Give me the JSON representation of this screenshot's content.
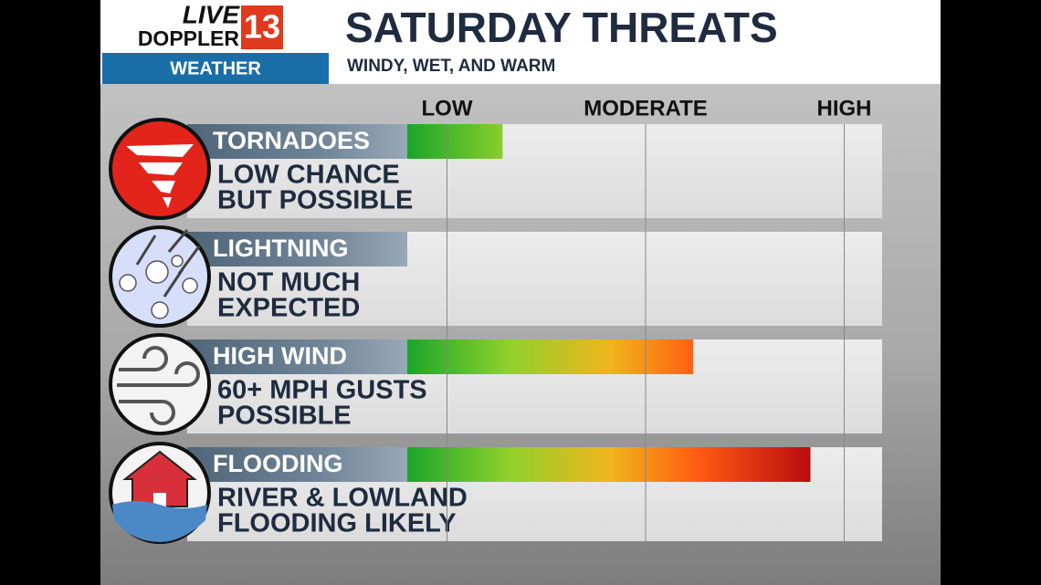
{
  "logo": {
    "line1": "LIVE",
    "line2": "DOPPLER",
    "channel": "13",
    "section": "WEATHER"
  },
  "header": {
    "title": "SATURDAY THREATS",
    "subtitle": "WINDY, WET, AND WARM"
  },
  "scale": {
    "xlim": [
      0.8,
      3.2
    ],
    "ticks": [
      {
        "value": 1,
        "label": "LOW"
      },
      {
        "value": 2,
        "label": "MODERATE"
      },
      {
        "value": 3,
        "label": "HIGH"
      }
    ]
  },
  "threats": [
    {
      "name": "TORNADOES",
      "description": [
        "LOW CHANCE",
        "BUT POSSIBLE"
      ],
      "level": 1.28
    },
    {
      "name": "LIGHTNING",
      "description": [
        "NOT MUCH",
        "EXPECTED"
      ],
      "level": 0.8
    },
    {
      "name": "HIGH WIND",
      "description": [
        "60+ MPH GUSTS",
        "POSSIBLE"
      ],
      "level": 2.24
    },
    {
      "name": "FLOODING",
      "description": [
        "RIVER & LOWLAND",
        "FLOODING LIKELY"
      ],
      "level": 2.83
    }
  ]
}
